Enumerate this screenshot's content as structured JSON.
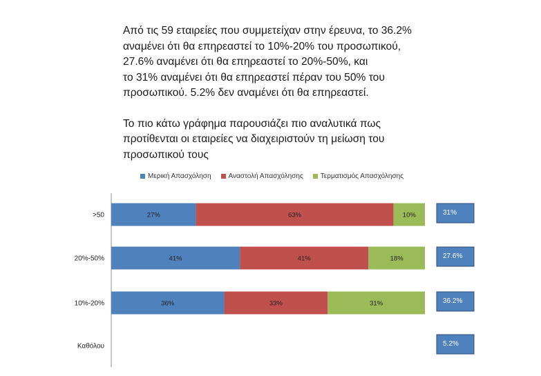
{
  "intro": {
    "paragraph1": [
      "Από τις 59 εταιρείες που συμμετείχαν στην έρευνα, το 36.2%",
      "αναμένει ότι θα επηρεαστεί το 10%-20% του προσωπικού,",
      "27.6% αναμένει ότι θα επηρεαστεί το 20%-50%, και",
      "το 31% αναμένει ότι θα επηρεαστεί πέραν του 50% του",
      "προσωπικού. 5.2% δεν αναμένει ότι θα επηρεαστεί."
    ],
    "paragraph2": [
      "Το πιο κάτω γράφημα παρουσιάζει πιο αναλυτικά πως",
      "προτίθενται οι εταιρείες να διαχειριστούν τη μείωση του",
      "προσωπικού τους"
    ]
  },
  "chart_data": {
    "type": "bar",
    "orientation": "horizontal",
    "stacked": true,
    "percent_stacked": true,
    "categories": [
      ">50",
      "20%-50%",
      "10%-20%",
      "Καθόλου"
    ],
    "series": [
      {
        "name": "Μερική Απασχόληση",
        "color": "#4f81bd",
        "values": [
          27,
          41,
          36,
          null
        ],
        "labels": [
          "27%",
          "41%",
          "36%",
          ""
        ]
      },
      {
        "name": "Αναστολή Απασχόλησης",
        "color": "#c0504d",
        "values": [
          63,
          41,
          33,
          null
        ],
        "labels": [
          "63%",
          "41%",
          "33%",
          ""
        ]
      },
      {
        "name": "Τερματισμός Απασχόλησης",
        "color": "#9bbb59",
        "values": [
          10,
          18,
          31,
          null
        ],
        "labels": [
          "10%",
          "18%",
          "31%",
          ""
        ]
      }
    ],
    "share_annotations": [
      "31%",
      "27.6%",
      "36.2%",
      "5.2%"
    ],
    "annotation_color": "#4f81bd",
    "legend_position": "top",
    "grid": false
  }
}
